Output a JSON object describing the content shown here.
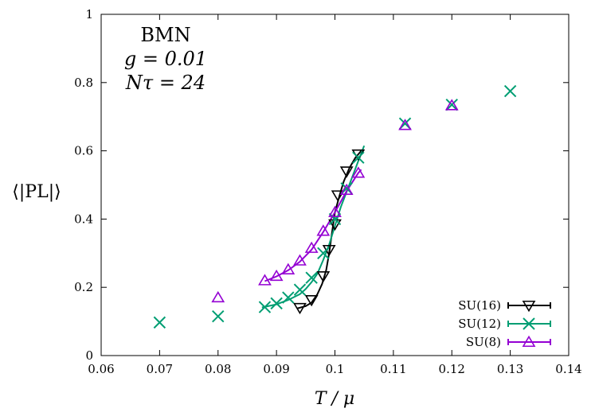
{
  "chart_data": {
    "type": "scatter",
    "xlabel": "T / μ",
    "ylabel": "⟨|PL|⟩",
    "xlim": [
      0.06,
      0.14
    ],
    "ylim": [
      0,
      1
    ],
    "xticks": [
      "0.06",
      "0.07",
      "0.08",
      "0.09",
      "0.1",
      "0.11",
      "0.12",
      "0.13",
      "0.14"
    ],
    "yticks": [
      "0",
      "0.2",
      "0.4",
      "0.6",
      "0.8",
      "1"
    ],
    "annotations": [
      "BMN",
      "g = 0.01",
      "Nτ = 24"
    ],
    "legend_position": "bottom-right",
    "grid": false,
    "series": [
      {
        "name": "SU(16)",
        "color": "#000000",
        "marker": "triangle-down",
        "points": [
          [
            0.094,
            0.14
          ],
          [
            0.096,
            0.163
          ],
          [
            0.098,
            0.233
          ],
          [
            0.099,
            0.31
          ],
          [
            0.1,
            0.385
          ],
          [
            0.1005,
            0.47
          ],
          [
            0.102,
            0.54
          ],
          [
            0.104,
            0.59
          ]
        ],
        "fit": [
          [
            0.0935,
            0.138
          ],
          [
            0.095,
            0.145
          ],
          [
            0.096,
            0.155
          ],
          [
            0.097,
            0.18
          ],
          [
            0.0978,
            0.21
          ],
          [
            0.0985,
            0.25
          ],
          [
            0.099,
            0.3
          ],
          [
            0.0995,
            0.36
          ],
          [
            0.1,
            0.42
          ],
          [
            0.1008,
            0.47
          ],
          [
            0.1015,
            0.51
          ],
          [
            0.1025,
            0.55
          ],
          [
            0.1035,
            0.58
          ],
          [
            0.1045,
            0.6
          ]
        ]
      },
      {
        "name": "SU(12)",
        "color": "#009e73",
        "marker": "cross",
        "points": [
          [
            0.07,
            0.097
          ],
          [
            0.08,
            0.115
          ],
          [
            0.088,
            0.142
          ],
          [
            0.09,
            0.153
          ],
          [
            0.092,
            0.17
          ],
          [
            0.094,
            0.193
          ],
          [
            0.096,
            0.228
          ],
          [
            0.098,
            0.3
          ],
          [
            0.1,
            0.4
          ],
          [
            0.102,
            0.49
          ],
          [
            0.104,
            0.58
          ],
          [
            0.112,
            0.68
          ],
          [
            0.12,
            0.735
          ],
          [
            0.13,
            0.775
          ]
        ],
        "fit": [
          [
            0.0875,
            0.141
          ],
          [
            0.09,
            0.15
          ],
          [
            0.092,
            0.163
          ],
          [
            0.094,
            0.18
          ],
          [
            0.095,
            0.195
          ],
          [
            0.096,
            0.215
          ],
          [
            0.097,
            0.24
          ],
          [
            0.098,
            0.28
          ],
          [
            0.099,
            0.325
          ],
          [
            0.1,
            0.38
          ],
          [
            0.101,
            0.435
          ],
          [
            0.102,
            0.48
          ],
          [
            0.103,
            0.525
          ],
          [
            0.104,
            0.57
          ],
          [
            0.105,
            0.615
          ]
        ]
      },
      {
        "name": "SU(8)",
        "color": "#9400d3",
        "marker": "triangle-up",
        "points": [
          [
            0.08,
            0.17
          ],
          [
            0.088,
            0.22
          ],
          [
            0.09,
            0.233
          ],
          [
            0.092,
            0.252
          ],
          [
            0.094,
            0.278
          ],
          [
            0.096,
            0.315
          ],
          [
            0.098,
            0.365
          ],
          [
            0.1,
            0.42
          ],
          [
            0.102,
            0.485
          ],
          [
            0.104,
            0.535
          ],
          [
            0.112,
            0.675
          ],
          [
            0.12,
            0.733
          ]
        ],
        "fit": [
          [
            0.088,
            0.218
          ],
          [
            0.09,
            0.232
          ],
          [
            0.092,
            0.25
          ],
          [
            0.094,
            0.275
          ],
          [
            0.096,
            0.31
          ],
          [
            0.098,
            0.362
          ],
          [
            0.1,
            0.42
          ],
          [
            0.102,
            0.482
          ],
          [
            0.104,
            0.535
          ],
          [
            0.1045,
            0.545
          ]
        ]
      }
    ]
  }
}
